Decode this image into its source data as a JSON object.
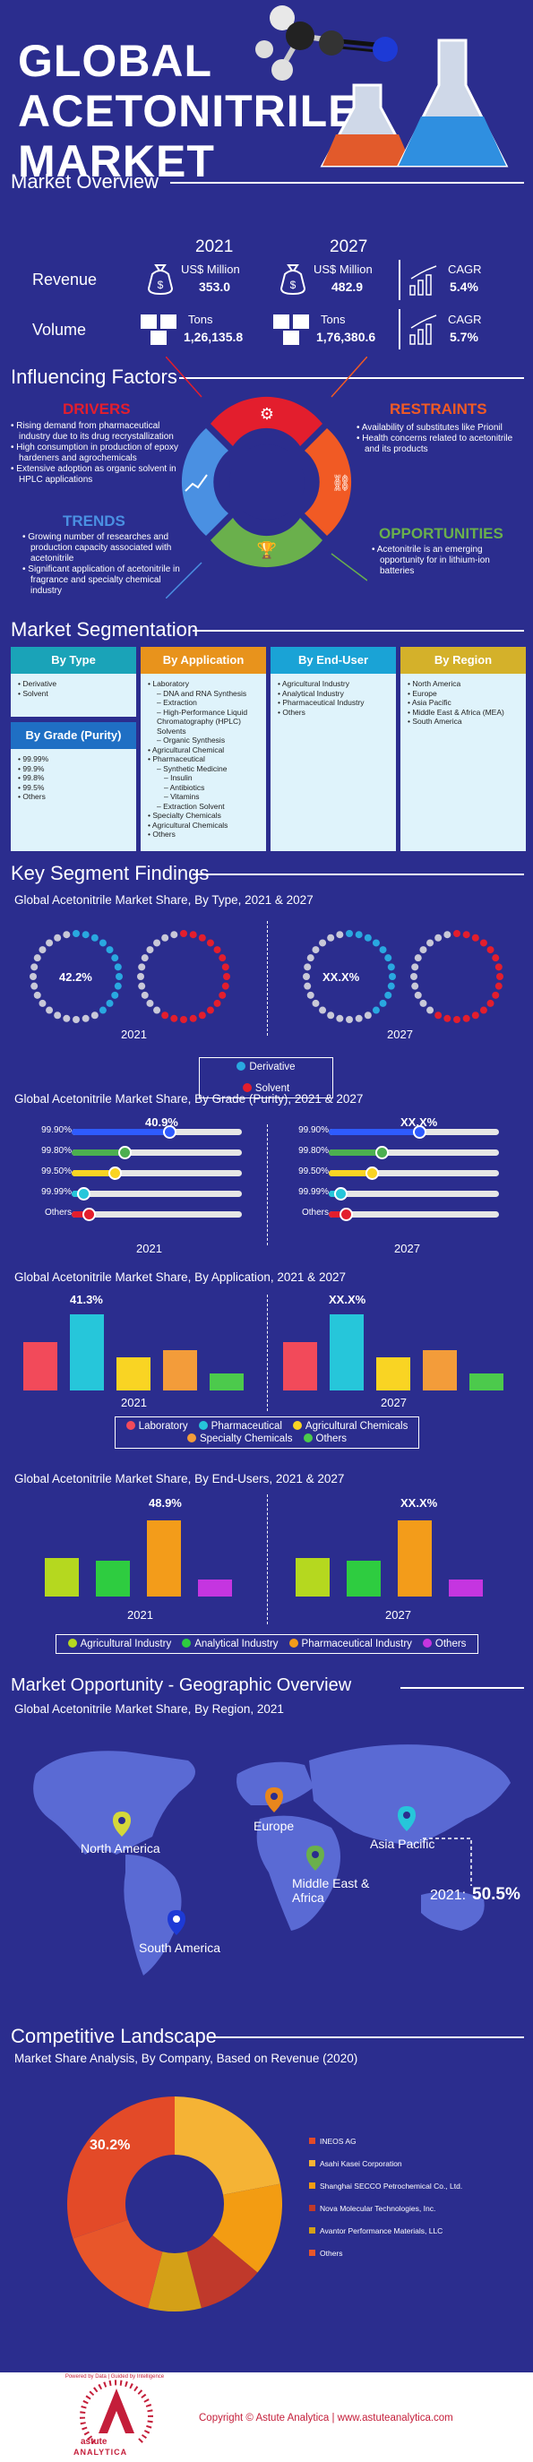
{
  "hero": {
    "title_line1": "GLOBAL",
    "title_line2": "ACETONITRILE",
    "title_line3": "MARKET"
  },
  "overview": {
    "title": "Market Overview",
    "year_a": "2021",
    "year_b": "2027",
    "revenue_label": "Revenue",
    "volume_label": "Volume",
    "rev_unit": "US$ Million",
    "rev_a": "353.0",
    "rev_b": "482.9",
    "vol_unit": "Tons",
    "vol_a": "1,26,135.8",
    "vol_b": "1,76,380.6",
    "cagr_label": "CAGR",
    "cagr_rev": "5.4%",
    "cagr_vol": "5.7%"
  },
  "factors": {
    "title": "Influencing Factors",
    "drivers_title": "DRIVERS",
    "drivers": [
      "Rising demand from pharmaceutical industry due to its drug recrystallization",
      "High consumption in production of epoxy hardeners and agrochemicals",
      "Extensive adoption as organic solvent in HPLC applications"
    ],
    "restraints_title": "RESTRAINTS",
    "restraints": [
      "Availability of substitutes like Prionil",
      "Health concerns related to acetonitrile and its products"
    ],
    "trends_title": "TRENDS",
    "trends": [
      "Growing number of researches and production capacity associated with acetonitrile",
      "Significant application of acetonitrile in fragrance and specialty chemical industry"
    ],
    "opportunities_title": "OPPORTUNITIES",
    "opportunities": [
      "Acetonitrile is an emerging opportunity for in lithium-ion batteries"
    ],
    "colors": {
      "drivers": "#e31e2d",
      "restraints": "#f15a24",
      "trends": "#4a90e2",
      "opportunities": "#6ab04c"
    }
  },
  "segmentation": {
    "title": "Market Segmentation",
    "type_head": "By Type",
    "type_items": [
      "Derivative",
      "Solvent"
    ],
    "grade_head": "By Grade (Purity)",
    "grade_items": [
      "99.99%",
      "99.9%",
      "99.8%",
      "99.5%",
      "Others"
    ],
    "app_head": "By Application",
    "app_items": [
      {
        "t": "Laboratory",
        "l": 0
      },
      {
        "t": "DNA and RNA Synthesis",
        "l": 1
      },
      {
        "t": "Extraction",
        "l": 1
      },
      {
        "t": "High-Performance Liquid Chromatography (HPLC) Solvents",
        "l": 1
      },
      {
        "t": "Organic Synthesis",
        "l": 1
      },
      {
        "t": "Agricultural Chemical",
        "l": 0
      },
      {
        "t": "Pharmaceutical",
        "l": 0
      },
      {
        "t": "Synthetic Medicine",
        "l": 1
      },
      {
        "t": "Insulin",
        "l": 2
      },
      {
        "t": "Antibiotics",
        "l": 2
      },
      {
        "t": "Vitamins",
        "l": 2
      },
      {
        "t": "Extraction Solvent",
        "l": 1
      },
      {
        "t": "Specialty Chemicals",
        "l": 0
      },
      {
        "t": "Agricultural Chemicals",
        "l": 0
      },
      {
        "t": "Others",
        "l": 0
      }
    ],
    "enduser_head": "By End-User",
    "enduser_items": [
      "Agricultural Industry",
      "Analytical Industry",
      "Pharmaceutical Industry",
      "Others"
    ],
    "region_head": "By Region",
    "region_items": [
      "North America",
      "Europe",
      "Asia Pacific",
      "Middle East & Africa (MEA)",
      "South America"
    ]
  },
  "findings": {
    "title": "Key Segment Findings",
    "type_chart_title": "Global Acetonitrile Market Share, By Type, 2021 & 2027",
    "grade_chart_title": "Global Acetonitrile Market Share, By Grade (Purity), 2021 & 2027",
    "app_chart_title": "Global Acetonitrile Market Share, By Application, 2021 & 2027",
    "enduser_chart_title": "Global Acetonitrile Market Share, By  End-Users, 2021 & 2027",
    "year_a": "2021",
    "year_b": "2027",
    "pct_a_type": "42.2%",
    "pct_b_type": "XX.X%",
    "pct_a_grade": "40.9%",
    "pct_b_grade": "XX.X%",
    "pct_a_app": "41.3%",
    "pct_b_app": "XX.X%",
    "pct_a_end": "48.9%",
    "pct_b_end": "XX.X%"
  },
  "chart_data": [
    {
      "type": "pie",
      "title": "Global Acetonitrile Market Share, By Type, 2021 & 2027",
      "categories": [
        "Derivative",
        "Solvent"
      ],
      "labels_2021": {
        "Derivative": 42.2
      },
      "colors": [
        "#29a8e0",
        "#e31e2d"
      ]
    },
    {
      "type": "bar",
      "title": "Global Acetonitrile Market Share, By Grade (Purity), 2021 & 2027",
      "categories": [
        "99.90%",
        "99.80%",
        "99.50%",
        "99.99%",
        "Others"
      ],
      "series": [
        {
          "name": "2021",
          "values": [
            40.9,
            22,
            18,
            5,
            7
          ]
        },
        {
          "name": "2027",
          "values": [
            38,
            22,
            18,
            5,
            7
          ]
        }
      ],
      "colors": [
        "#2e5bff",
        "#4caf50",
        "#f9d423",
        "#26c6da",
        "#e31e2d"
      ]
    },
    {
      "type": "bar",
      "title": "Global Acetonitrile Market Share, By Application, 2021 & 2027",
      "categories": [
        "Laboratory",
        "Pharmaceutical",
        "Agricultural Chemicals",
        "Specialty Chemicals",
        "Others"
      ],
      "series": [
        {
          "name": "2021",
          "values": [
            26,
            41.3,
            18,
            22,
            9
          ]
        },
        {
          "name": "2027",
          "values": [
            26,
            41.3,
            18,
            22,
            9
          ]
        }
      ],
      "colors": [
        "#f24a5a",
        "#26c6da",
        "#f9d423",
        "#f39c3a",
        "#4cca4c"
      ]
    },
    {
      "type": "bar",
      "title": "Global Acetonitrile Market Share, By  End-Users, 2021 & 2027",
      "categories": [
        "Agricultural Industry",
        "Analytical Industry",
        "Pharmaceutical Industry",
        "Others"
      ],
      "series": [
        {
          "name": "2021",
          "values": [
            25,
            23,
            48.9,
            11
          ]
        },
        {
          "name": "2027",
          "values": [
            25,
            23,
            48.9,
            11
          ]
        }
      ],
      "colors": [
        "#b5d81f",
        "#2ecc40",
        "#f39c1a",
        "#c535e0"
      ]
    },
    {
      "type": "pie",
      "title": "Market Share Analysis, By Company, Based on Revenue (2020)",
      "categories": [
        "INEOS AG",
        "Asahi Kasei Corporation",
        "Shanghai SECCO Petrochemical Co., Ltd.",
        "Nova Molecular Technologies, Inc.",
        "Avantor Performance Materials, LLC",
        "Others"
      ],
      "values": [
        30.2,
        22,
        14,
        10,
        8,
        15.8
      ],
      "colors": [
        "#e34a28",
        "#f5b335",
        "#f39c12",
        "#c0392b",
        "#d4a017",
        "#e8562a"
      ]
    }
  ],
  "legends": {
    "type": [
      "Derivative",
      "Solvent"
    ],
    "app": [
      "Laboratory",
      "Pharmaceutical",
      "Agricultural Chemicals",
      "Specialty Chemicals",
      "Others"
    ],
    "end": [
      "Agricultural Industry",
      "Analytical Industry",
      "Pharmaceutical Industry",
      "Others"
    ]
  },
  "geo": {
    "title": "Market Opportunity - Geographic Overview",
    "chart_title": "Global Acetonitrile Market Share, By Region, 2021",
    "regions": [
      "North America",
      "Europe",
      "Asia Pacific",
      "Middle East & Africa",
      "South America"
    ],
    "callout_year": "2021:",
    "callout_value": "50.5%"
  },
  "competitive": {
    "title": "Competitive Landscape",
    "chart_title": "Market Share Analysis, By Company, Based on Revenue (2020)",
    "top_value": "30.2%"
  },
  "footer": {
    "copyright": "Copyright © Astute Analytica  |  www.astuteanalytica.com",
    "logo_word": "astute",
    "logo_word2": "ANALYTICA",
    "tagline": "Powered by Data | Guided by Intelligence"
  }
}
